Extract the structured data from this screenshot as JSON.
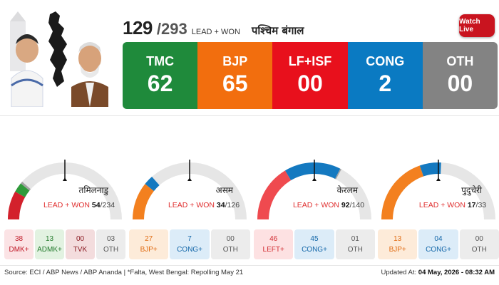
{
  "header": {
    "count": "129",
    "total": "293",
    "lead_label": "LEAD + WON",
    "state": "पश्चिम बंगाल",
    "watch_live": "Watch Live"
  },
  "tally": [
    {
      "name": "TMC",
      "value": "62",
      "color": "#1f8a3b"
    },
    {
      "name": "BJP",
      "value": "65",
      "color": "#f26e0e"
    },
    {
      "name": "LF+ISF",
      "value": "00",
      "color": "#e8101c"
    },
    {
      "name": "CONG",
      "value": "2",
      "color": "#0a7ac2"
    },
    {
      "name": "OTH",
      "value": "00",
      "color": "#838383"
    }
  ],
  "states": [
    {
      "name": "तमिलनाडु",
      "lead_label": "LEAD + WON",
      "count": "54",
      "total": "234",
      "gauge": [
        {
          "party": "DMK+",
          "value": 38,
          "color": "#d3212c"
        },
        {
          "party": "ADMK+",
          "value": 13,
          "color": "#2f9a3a"
        },
        {
          "party": "TVK",
          "value": 0,
          "color": "#9a1b22"
        },
        {
          "party": "OTH",
          "value": 3,
          "color": "#a3a3a3"
        }
      ],
      "boxes": [
        {
          "value": "38",
          "label": "DMK+",
          "bg": "#fbe3e5",
          "fg": "#c01826"
        },
        {
          "value": "13",
          "label": "ADMK+",
          "bg": "#e2f2e1",
          "fg": "#237a2c"
        },
        {
          "value": "00",
          "label": "TVK",
          "bg": "#f3dcdd",
          "fg": "#8a1a22"
        },
        {
          "value": "03",
          "label": "OTH",
          "bg": "#ececec",
          "fg": "#555555"
        }
      ]
    },
    {
      "name": "असम",
      "lead_label": "LEAD + WON",
      "count": "34",
      "total": "126",
      "gauge": [
        {
          "party": "BJP+",
          "value": 27,
          "color": "#f3801f"
        },
        {
          "party": "CONG+",
          "value": 7,
          "color": "#1479c0"
        },
        {
          "party": "OTH",
          "value": 0,
          "color": "#a3a3a3"
        }
      ],
      "boxes": [
        {
          "value": "27",
          "label": "BJP+",
          "bg": "#fdebd9",
          "fg": "#e06a10"
        },
        {
          "value": "7",
          "label": "CONG+",
          "bg": "#dcecf8",
          "fg": "#1266a8"
        },
        {
          "value": "00",
          "label": "OTH",
          "bg": "#ececec",
          "fg": "#555555"
        }
      ]
    },
    {
      "name": "केरलम",
      "lead_label": "LEAD + WON",
      "count": "92",
      "total": "140",
      "gauge": [
        {
          "party": "LEFT+",
          "value": 46,
          "color": "#ef4a4f"
        },
        {
          "party": "CONG+",
          "value": 45,
          "color": "#1479c0"
        },
        {
          "party": "OTH",
          "value": 1,
          "color": "#a3a3a3"
        }
      ],
      "boxes": [
        {
          "value": "46",
          "label": "LEFT+",
          "bg": "#fde1e2",
          "fg": "#d12a30"
        },
        {
          "value": "45",
          "label": "CONG+",
          "bg": "#dcecf8",
          "fg": "#1266a8"
        },
        {
          "value": "01",
          "label": "OTH",
          "bg": "#ececec",
          "fg": "#555555"
        }
      ]
    },
    {
      "name": "पुदुचेरी",
      "lead_label": "LEAD + WON",
      "count": "17",
      "total": "33",
      "gauge": [
        {
          "party": "BJP+",
          "value": 13,
          "color": "#f3801f"
        },
        {
          "party": "CONG+",
          "value": 4,
          "color": "#1479c0"
        },
        {
          "party": "OTH",
          "value": 0,
          "color": "#a3a3a3"
        }
      ],
      "boxes": [
        {
          "value": "13",
          "label": "BJP+",
          "bg": "#fdebd9",
          "fg": "#e06a10"
        },
        {
          "value": "04",
          "label": "CONG+",
          "bg": "#dcecf8",
          "fg": "#1266a8"
        },
        {
          "value": "00",
          "label": "OTH",
          "bg": "#ececec",
          "fg": "#555555"
        }
      ]
    }
  ],
  "footer": {
    "source": "Source: ECI / ABP News / ABP Ananda | *Falta, West Bengal: Repolling May 21",
    "updated_label": "Updated At:",
    "updated_value": "04 May, 2026 - 08:32 AM"
  }
}
